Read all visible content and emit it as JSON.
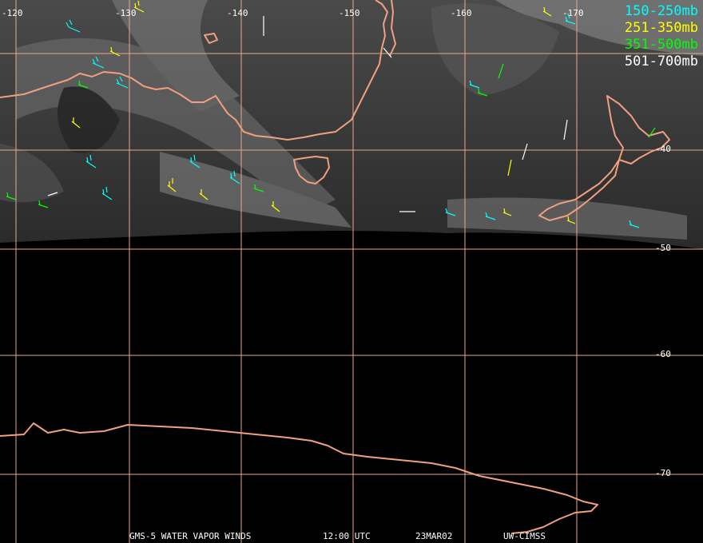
{
  "legend": {
    "items": [
      {
        "label": "150-250mb",
        "color": "#00ffff"
      },
      {
        "label": "251-350mb",
        "color": "#ffff00"
      },
      {
        "label": "351-500mb",
        "color": "#00ff00"
      },
      {
        "label": "501-700mb",
        "color": "#ffffff"
      }
    ]
  },
  "grid": {
    "longitude_labels": [
      "-120",
      "-130",
      "-140",
      "-150",
      "-160",
      "-170"
    ],
    "latitude_labels": [
      "-40",
      "-50",
      "-60",
      "-70"
    ]
  },
  "footer": {
    "product": "GMS-5 WATER VAPOR WINDS",
    "time": "12:00 UTC",
    "date": "23MAR02",
    "credit": "UW-CIMSS"
  },
  "colors": {
    "coastline": "#f0a080",
    "grid": "#e8a888",
    "background": "#000000"
  }
}
